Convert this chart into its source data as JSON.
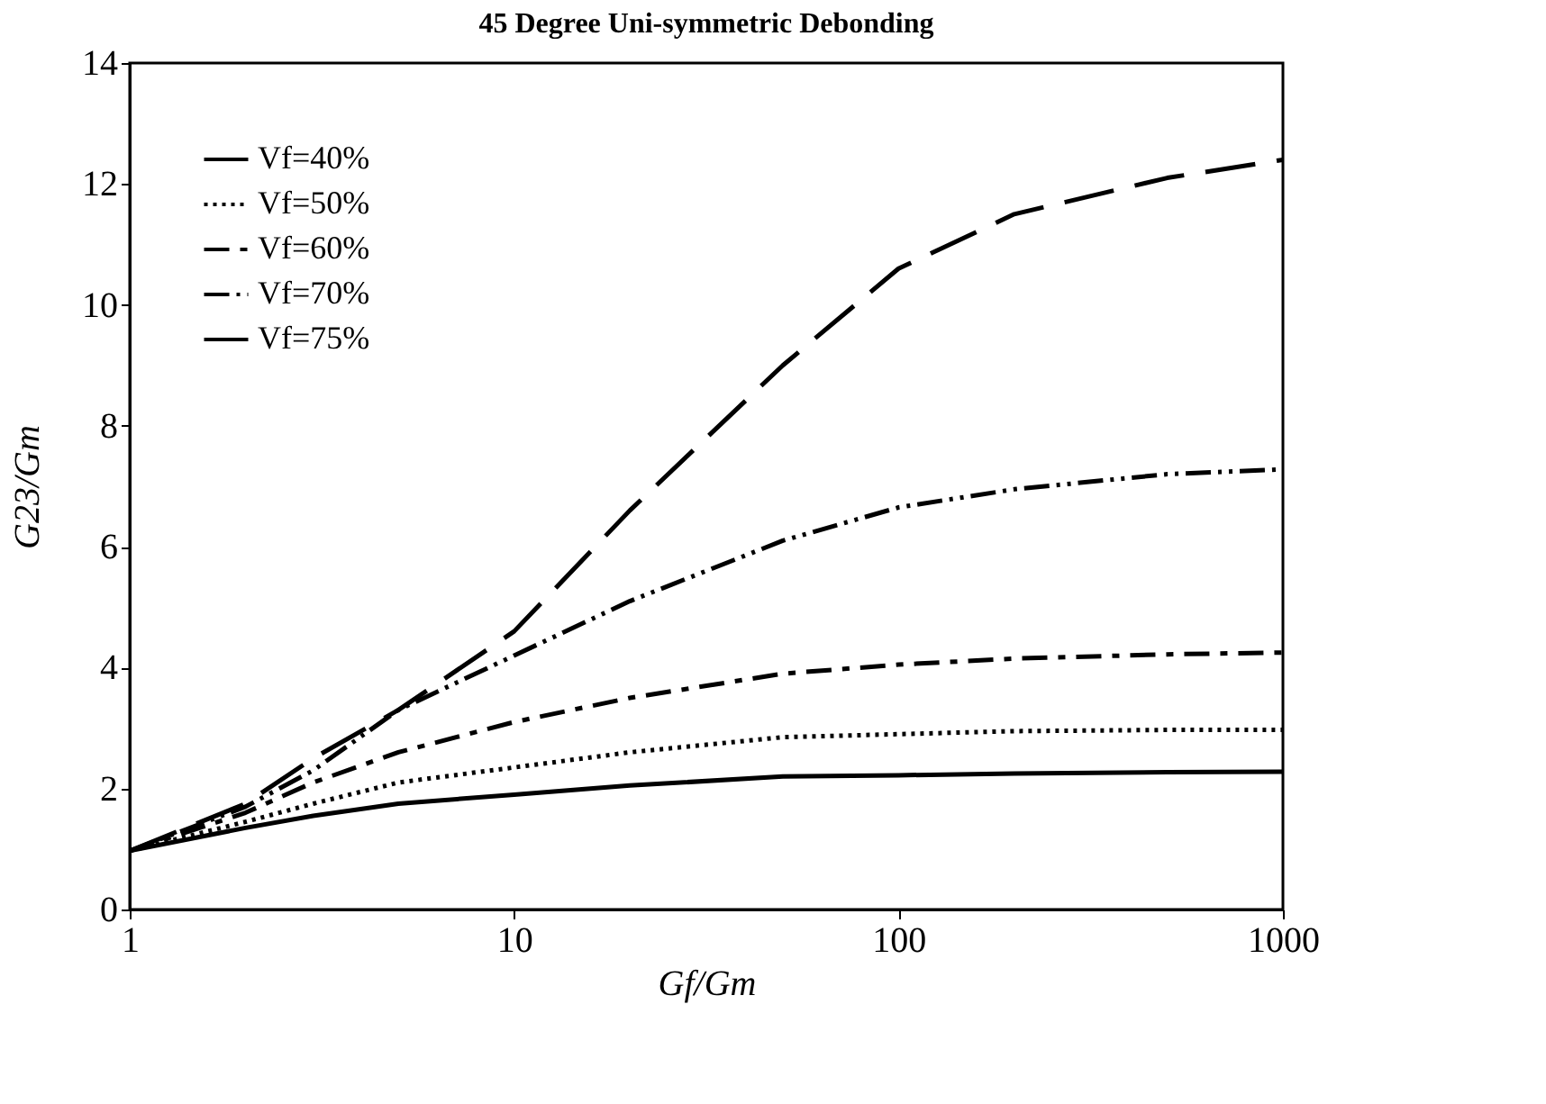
{
  "chart_data": {
    "type": "line",
    "title": "45 Degree Uni-symmetric Debonding",
    "xlabel": "Gf/Gm",
    "ylabel": "G23/Gm",
    "log": "x",
    "x": [
      1,
      2,
      3,
      5,
      10,
      20,
      50,
      100,
      200,
      500,
      1000
    ],
    "xlim": [
      1,
      1000
    ],
    "xticks": [
      1,
      10,
      100,
      1000
    ],
    "ylim": [
      0,
      14
    ],
    "yticks": [
      0,
      2,
      4,
      6,
      8,
      10,
      12,
      14
    ],
    "grid": false,
    "legend": "top left",
    "marker": "none",
    "series": [
      {
        "name": "Vf=40%",
        "color": "#000000",
        "line_style": "solid",
        "values": [
          0.97,
          1.35,
          1.55,
          1.75,
          1.9,
          2.05,
          2.2,
          2.22,
          2.25,
          2.27,
          2.28
        ]
      },
      {
        "name": "Vf=50%",
        "color": "#000000",
        "line_style": "dotted",
        "values": [
          0.97,
          1.45,
          1.75,
          2.1,
          2.35,
          2.6,
          2.85,
          2.9,
          2.95,
          2.97,
          2.97
        ]
      },
      {
        "name": "Vf=60%",
        "color": "#000000",
        "line_style": "dashdot",
        "values": [
          0.97,
          1.6,
          2.1,
          2.6,
          3.1,
          3.5,
          3.9,
          4.05,
          4.15,
          4.22,
          4.25
        ]
      },
      {
        "name": "Vf=70%",
        "color": "#000000",
        "line_style": "dashdotdot",
        "values": [
          0.97,
          1.7,
          2.3,
          3.3,
          4.2,
          5.1,
          6.1,
          6.65,
          6.95,
          7.2,
          7.28
        ]
      },
      {
        "name": "Vf=75%",
        "color": "#000000",
        "line_style": "longdash",
        "values": [
          0.97,
          1.75,
          2.5,
          3.3,
          4.6,
          6.6,
          9.0,
          10.6,
          11.5,
          12.1,
          12.4
        ]
      }
    ]
  }
}
